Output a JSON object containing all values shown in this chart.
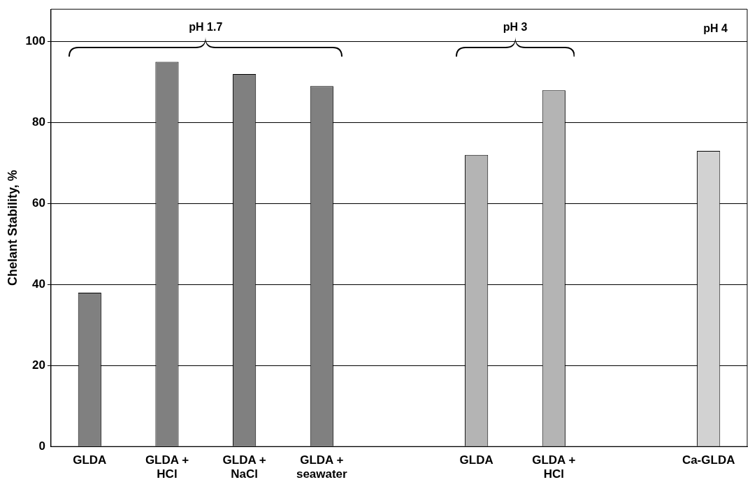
{
  "chart_data": {
    "type": "bar",
    "ylabel": "Chelant Stability, %",
    "categories": [
      "GLDA",
      "GLDA + HCl",
      "GLDA + NaCl",
      "GLDA + seawater",
      null,
      "GLDA",
      "GLDA + HCl",
      null,
      "Ca-GLDA"
    ],
    "values": [
      38,
      95,
      92,
      89,
      null,
      72,
      88,
      null,
      73
    ],
    "colors": [
      "#808080",
      "#808080",
      "#808080",
      "#808080",
      "#808080",
      "#b4b4b4",
      "#b4b4b4",
      "#d2d2d2",
      "#d2d2d2"
    ],
    "ylim": [
      0,
      108
    ],
    "yticks": [
      0,
      20,
      40,
      60,
      80,
      100
    ],
    "grid": "y",
    "legend": false,
    "annotations": [
      "pH 1.7",
      "pH 3",
      "pH 4"
    ]
  }
}
